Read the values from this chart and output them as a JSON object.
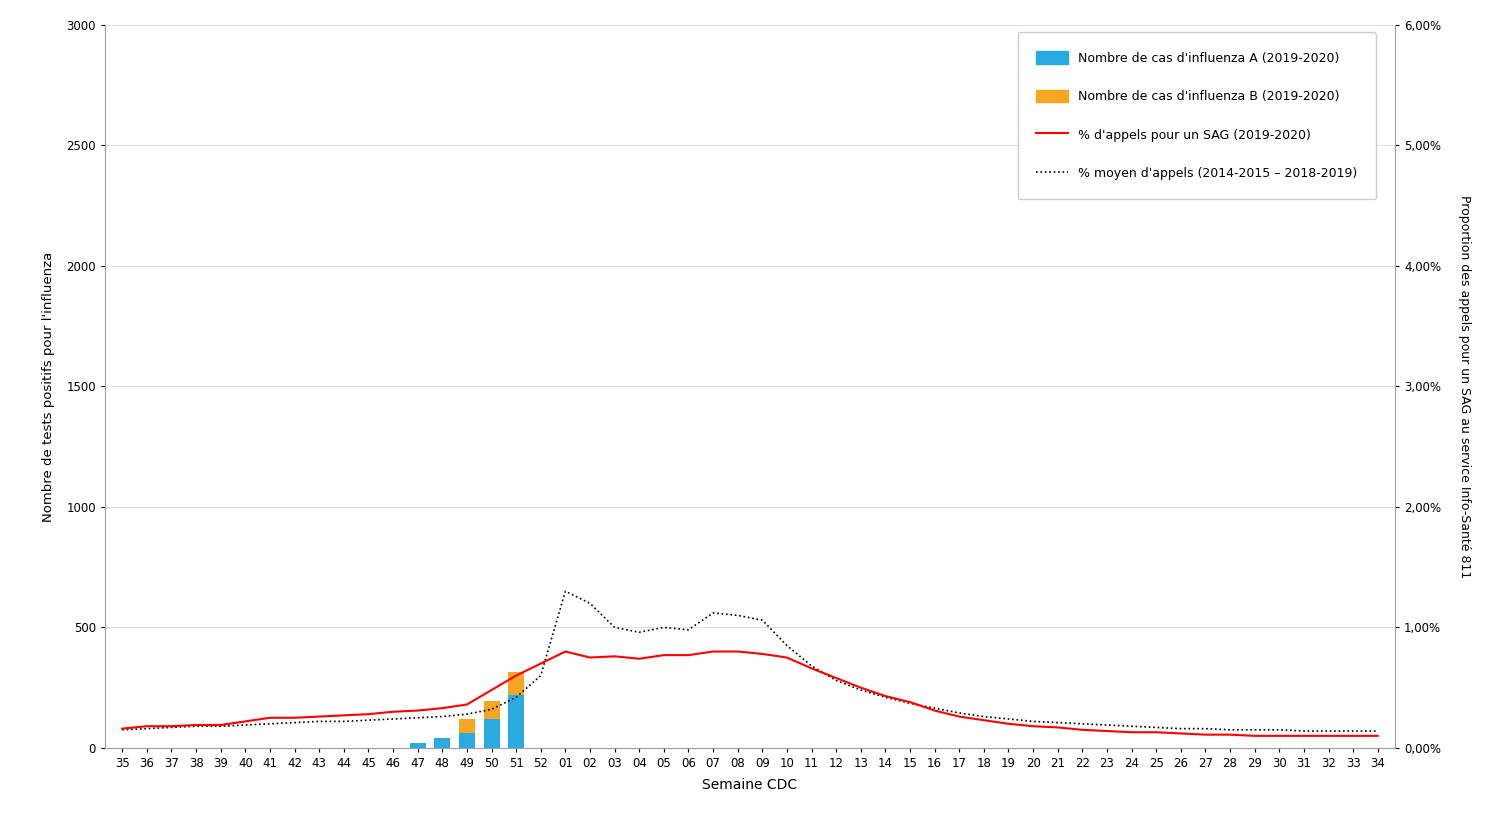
{
  "weeks": [
    "35",
    "36",
    "37",
    "38",
    "39",
    "40",
    "41",
    "42",
    "43",
    "44",
    "45",
    "46",
    "47",
    "48",
    "49",
    "50",
    "51",
    "52",
    "01",
    "02",
    "03",
    "04",
    "05",
    "06",
    "07",
    "08",
    "09",
    "10",
    "11",
    "12",
    "13",
    "14",
    "15",
    "16",
    "17",
    "18",
    "19",
    "20",
    "21",
    "22",
    "23",
    "24",
    "25",
    "26",
    "27",
    "28",
    "29",
    "30",
    "31",
    "32",
    "33",
    "34"
  ],
  "influenza_A": [
    0,
    0,
    0,
    0,
    0,
    0,
    0,
    0,
    0,
    0,
    0,
    0,
    20,
    40,
    60,
    120,
    220,
    0,
    0,
    0,
    0,
    0,
    0,
    0,
    0,
    0,
    0,
    0,
    0,
    0,
    0,
    0,
    0,
    0,
    0,
    0,
    0,
    0,
    0,
    0,
    0,
    0,
    0,
    0,
    0,
    0,
    0,
    0,
    0,
    0,
    0,
    0
  ],
  "influenza_B": [
    0,
    0,
    0,
    0,
    0,
    0,
    0,
    0,
    0,
    0,
    0,
    0,
    0,
    0,
    60,
    75,
    95,
    0,
    0,
    0,
    0,
    0,
    0,
    0,
    0,
    0,
    0,
    0,
    0,
    0,
    0,
    0,
    0,
    0,
    0,
    0,
    0,
    0,
    0,
    0,
    0,
    0,
    0,
    0,
    0,
    0,
    0,
    0,
    0,
    0,
    0,
    0
  ],
  "sag_2019": [
    0.0016,
    0.0018,
    0.0018,
    0.0019,
    0.0019,
    0.0022,
    0.0025,
    0.0025,
    0.0026,
    0.0027,
    0.0028,
    0.003,
    0.0031,
    0.0033,
    0.0036,
    0.0048,
    0.006,
    0.007,
    0.008,
    0.0075,
    0.0076,
    0.0074,
    0.0077,
    0.0077,
    0.008,
    0.008,
    0.0078,
    0.0075,
    0.0066,
    0.0058,
    0.005,
    0.0043,
    0.0038,
    0.0031,
    0.0026,
    0.0023,
    0.002,
    0.0018,
    0.0017,
    0.0015,
    0.0014,
    0.0013,
    0.0013,
    0.0012,
    0.0011,
    0.0011,
    0.001,
    0.001,
    0.001,
    0.001,
    0.001,
    0.001
  ],
  "sag_mean": [
    0.0015,
    0.0016,
    0.0017,
    0.0018,
    0.0018,
    0.0019,
    0.002,
    0.0021,
    0.0022,
    0.0022,
    0.0023,
    0.0024,
    0.0025,
    0.0026,
    0.0028,
    0.0032,
    0.0042,
    0.006,
    0.013,
    0.012,
    0.01,
    0.0096,
    0.01,
    0.0098,
    0.0112,
    0.011,
    0.0106,
    0.0085,
    0.0068,
    0.0056,
    0.0048,
    0.0042,
    0.0037,
    0.0033,
    0.0029,
    0.0026,
    0.0024,
    0.0022,
    0.0021,
    0.002,
    0.0019,
    0.0018,
    0.0017,
    0.0016,
    0.0016,
    0.0015,
    0.0015,
    0.0015,
    0.0014,
    0.0014,
    0.0014,
    0.0014
  ],
  "color_A": "#29ABE2",
  "color_B": "#F5A623",
  "color_sag": "#FF0000",
  "color_mean": "#000000",
  "ylabel_left": "Nombre de tests positifs pour l'influenza",
  "ylabel_right": "Proportion des appels pour un SAG au service Info-Santé 811",
  "xlabel": "Semaine CDC",
  "ylim_left": [
    0,
    3000
  ],
  "ylim_right": [
    0.0,
    0.06
  ],
  "yticks_left": [
    0,
    500,
    1000,
    1500,
    2000,
    2500,
    3000
  ],
  "yticks_right": [
    0.0,
    0.01,
    0.02,
    0.03,
    0.04,
    0.05,
    0.06
  ],
  "ytick_labels_right": [
    "0,00%",
    "1,00%",
    "2,00%",
    "3,00%",
    "4,00%",
    "5,00%",
    "6,00%"
  ],
  "legend_A": "Nombre de cas d'influenza A (2019-2020)",
  "legend_B": "Nombre de cas d'influenza B (2019-2020)",
  "legend_sag": "% d'appels pour un SAG (2019-2020)",
  "legend_mean": "% moyen d'appels (2014-2015 – 2018-2019)",
  "bg_color": "#FFFFFF",
  "fig_width": 15.0,
  "fig_height": 8.31,
  "dpi": 100
}
